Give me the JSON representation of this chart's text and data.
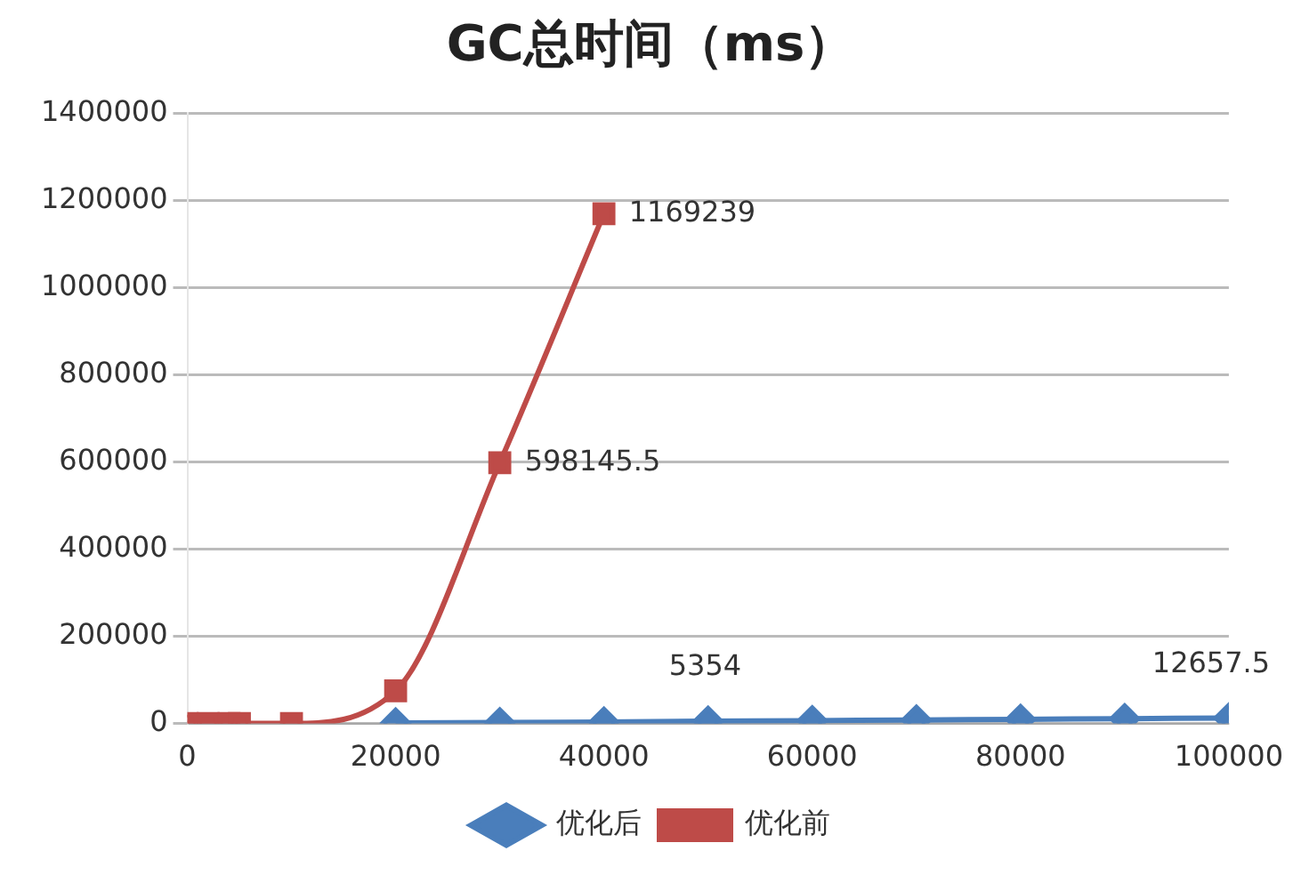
{
  "chart_data": {
    "type": "line",
    "title": "GC总时间（ms）",
    "xlim": [
      0,
      100000
    ],
    "xticks": [
      0,
      20000,
      40000,
      60000,
      80000,
      100000
    ],
    "ylim": [
      0,
      1400000
    ],
    "yticks": [
      0,
      200000,
      400000,
      600000,
      800000,
      1000000,
      1200000,
      1400000
    ],
    "grid": "y",
    "legend": "bottom",
    "line_style": "solid",
    "series": [
      {
        "name": "优化后",
        "color": "#4a7ebb",
        "marker": "diamond",
        "x": [
          20000,
          30000,
          40000,
          50000,
          60000,
          70000,
          80000,
          90000,
          100000
        ],
        "values": [
          1000,
          2000,
          3500,
          5354,
          6500,
          8000,
          9500,
          11000,
          12657.5
        ],
        "value_labels": [
          null,
          null,
          null,
          "5354",
          null,
          null,
          null,
          null,
          "12657.5"
        ]
      },
      {
        "name": "优化前",
        "color": "#be4b48",
        "marker": "square",
        "x": [
          0,
          2000,
          4000,
          5000,
          10000,
          20000,
          30000,
          40000
        ],
        "values": [
          0,
          0,
          0,
          0,
          0,
          75000,
          598145.5,
          1169239
        ],
        "value_labels": [
          null,
          null,
          null,
          null,
          null,
          null,
          "598145.5",
          "1169239"
        ]
      }
    ]
  }
}
